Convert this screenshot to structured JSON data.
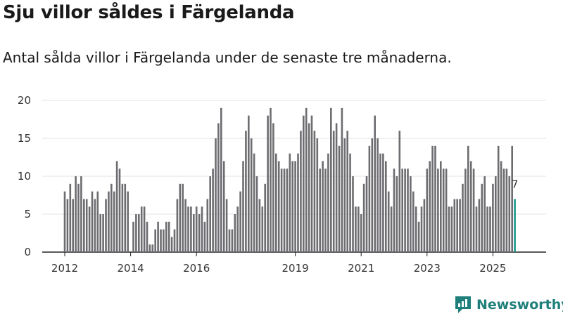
{
  "title": "Sju villor såldes i Färgelanda",
  "subtitle": "Antal sålda villor i Färgelanda under de senaste tre månaderna.",
  "brand": {
    "name": "Newsworthy"
  },
  "colors": {
    "bar": "#6d6c70",
    "highlight": "#1a9a8e",
    "grid": "#e3e3e3",
    "axis": "#222222"
  },
  "chart_data": {
    "type": "bar",
    "title": "Sju villor såldes i Färgelanda",
    "xlabel": "",
    "ylabel": "",
    "ylim": [
      0,
      20
    ],
    "yticks": [
      0,
      5,
      10,
      15,
      20
    ],
    "xtick_labels": [
      "2012",
      "2014",
      "2016",
      "2019",
      "2021",
      "2023",
      "2025"
    ],
    "xtick_index": [
      0,
      24,
      48,
      84,
      108,
      132,
      156
    ],
    "start": "2012-01",
    "end": "2025-10",
    "last_value_label": "7",
    "values": [
      8,
      7,
      9,
      7,
      10,
      9,
      10,
      7,
      7,
      6,
      8,
      7,
      8,
      5,
      5,
      7,
      8,
      9,
      8,
      12,
      11,
      9,
      9,
      8,
      0,
      4,
      5,
      5,
      6,
      6,
      4,
      1,
      1,
      3,
      4,
      3,
      3,
      4,
      4,
      2,
      3,
      7,
      9,
      9,
      7,
      6,
      6,
      5,
      6,
      5,
      6,
      4,
      7,
      10,
      11,
      15,
      17,
      19,
      12,
      7,
      3,
      3,
      5,
      6,
      8,
      12,
      16,
      18,
      15,
      13,
      10,
      7,
      6,
      9,
      18,
      19,
      17,
      13,
      12,
      11,
      11,
      11,
      13,
      12,
      12,
      13,
      16,
      18,
      19,
      17,
      18,
      16,
      15,
      11,
      12,
      11,
      13,
      19,
      16,
      17,
      14,
      19,
      15,
      16,
      13,
      10,
      6,
      6,
      5,
      9,
      10,
      14,
      15,
      18,
      15,
      13,
      13,
      12,
      8,
      6,
      11,
      10,
      16,
      11,
      11,
      11,
      10,
      8,
      6,
      4,
      6,
      7,
      11,
      12,
      14,
      14,
      11,
      12,
      11,
      11,
      6,
      6,
      7,
      7,
      7,
      9,
      11,
      14,
      12,
      11,
      6,
      7,
      9,
      10,
      6,
      6,
      9,
      10,
      14,
      12,
      11,
      11,
      10,
      14,
      7
    ]
  }
}
